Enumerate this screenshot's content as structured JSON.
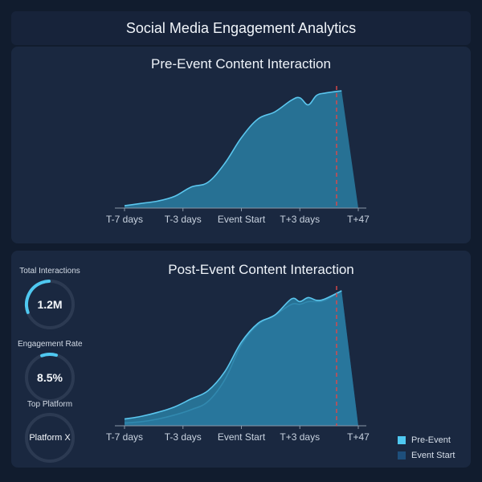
{
  "header": {
    "title": "Social Media Engagement Analytics"
  },
  "kpis": [
    {
      "label": "Total Interactions",
      "value": "1.2M",
      "progress": 0.3
    },
    {
      "label": "Engagement Rate",
      "value": "8.5%",
      "progress": 0.1
    },
    {
      "label": "Top Platform",
      "value": "Platform X",
      "progress": 0
    }
  ],
  "legend": [
    {
      "label": "Pre-Event",
      "color": "#4fc8f0"
    },
    {
      "label": "Event Start",
      "color": "#1e4f7c"
    }
  ],
  "colors": {
    "line": "#5bc6ee",
    "area": "#2a7ea3",
    "area_dark": "#1e4f7c",
    "marker": "#e04848"
  },
  "chart_data": [
    {
      "type": "area",
      "title": "Pre-Event Content Interaction",
      "tick_labels": [
        "T-7 days",
        "T-3 days",
        "Event Start",
        "T+3 days",
        "T+47"
      ],
      "x": [
        -7,
        -6,
        -5,
        -4,
        -3,
        -2,
        -1,
        0,
        1,
        2,
        3,
        3.5,
        4,
        4.5,
        5,
        6,
        7
      ],
      "xlim": [
        -7,
        7
      ],
      "ylim": [
        0,
        100
      ],
      "series": [
        {
          "values": [
            2,
            4,
            6,
            10,
            18,
            22,
            38,
            60,
            76,
            82,
            92,
            94,
            88,
            96,
            98,
            100,
            0
          ]
        }
      ],
      "marker_x": 5.7
    },
    {
      "type": "area",
      "title": "Post-Event Content Interaction",
      "tick_labels": [
        "T-7 days",
        "T-3 days",
        "Event Start",
        "T+3 days",
        "T+47"
      ],
      "x": [
        -7,
        -6,
        -5,
        -4,
        -3,
        -2,
        -1,
        0,
        1,
        2,
        3,
        3.5,
        4,
        4.5,
        5,
        6,
        7
      ],
      "xlim": [
        -7,
        7
      ],
      "ylim": [
        0,
        100
      ],
      "marker_x": 5.7,
      "series": [
        {
          "values": [
            5,
            7,
            10,
            14,
            20,
            26,
            40,
            62,
            76,
            82,
            94,
            92,
            95,
            93,
            94,
            100,
            0
          ]
        },
        {
          "values": [
            2,
            3,
            5,
            8,
            12,
            18,
            34,
            60,
            75,
            82,
            90,
            90,
            92,
            92,
            93,
            100,
            0
          ]
        }
      ]
    }
  ]
}
